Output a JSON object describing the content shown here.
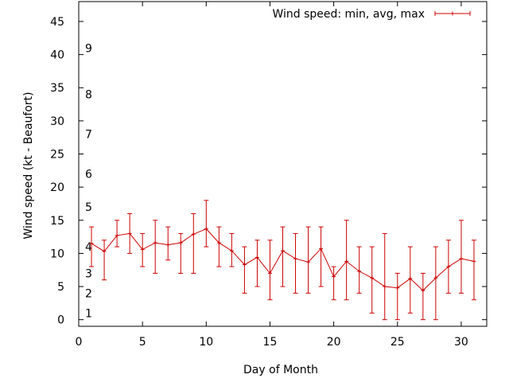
{
  "chart_data": {
    "type": "line",
    "xlabel": "Day of Month",
    "ylabel": "Wind speed (kt - Beaufort)",
    "xlim": [
      0,
      32
    ],
    "ylim": [
      -1,
      48
    ],
    "xticks": [
      0,
      5,
      10,
      15,
      20,
      25,
      30
    ],
    "yticks": [
      0,
      5,
      10,
      15,
      20,
      25,
      30,
      35,
      40,
      45
    ],
    "grid": false,
    "legend_position": "top-right",
    "series_color": "#cc0000",
    "beaufort_labels": [
      {
        "label": "1",
        "kt": 1
      },
      {
        "label": "2",
        "kt": 4
      },
      {
        "label": "3",
        "kt": 7
      },
      {
        "label": "4",
        "kt": 11
      },
      {
        "label": "5",
        "kt": 17
      },
      {
        "label": "6",
        "kt": 22
      },
      {
        "label": "7",
        "kt": 28
      },
      {
        "label": "8",
        "kt": 34
      },
      {
        "label": "9",
        "kt": 41
      }
    ],
    "series": [
      {
        "name": "Wind speed: min, avg, max",
        "x": [
          1,
          2,
          3,
          4,
          5,
          6,
          7,
          8,
          9,
          10,
          11,
          12,
          13,
          14,
          15,
          16,
          17,
          18,
          19,
          20,
          21,
          22,
          23,
          24,
          25,
          26,
          27,
          28,
          29,
          30,
          31
        ],
        "avg": [
          11.5,
          10.3,
          12.7,
          13.0,
          10.6,
          11.6,
          11.3,
          11.6,
          12.9,
          13.7,
          11.6,
          10.4,
          8.3,
          9.4,
          7.0,
          10.4,
          9.2,
          8.7,
          10.7,
          6.5,
          8.8,
          7.3,
          6.3,
          5.0,
          4.8,
          6.2,
          4.4,
          6.3,
          8.0,
          9.2,
          8.8
        ],
        "min": [
          8,
          6,
          11,
          10,
          8,
          7,
          9,
          7,
          7,
          11,
          8,
          8,
          4,
          5,
          3,
          5,
          4,
          4,
          5,
          3,
          3,
          4,
          1,
          0,
          0,
          1,
          0,
          0,
          4,
          4,
          3
        ],
        "max": [
          14,
          12,
          15,
          16,
          13,
          15,
          14,
          13,
          16,
          18,
          14,
          13,
          11,
          12,
          12,
          14,
          13,
          14,
          14,
          8,
          15,
          11,
          11,
          13,
          7,
          11,
          7,
          11,
          12,
          15,
          12
        ]
      }
    ]
  }
}
